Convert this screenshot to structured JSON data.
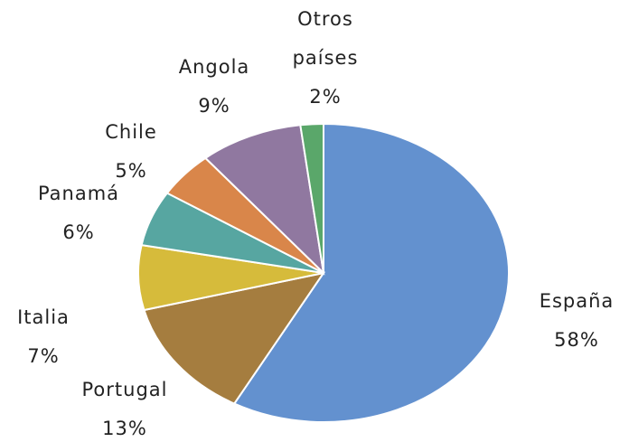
{
  "chart_data": {
    "type": "pie",
    "categories": [
      "España",
      "Portugal",
      "Italia",
      "Panamá",
      "Chile",
      "Angola",
      "Otros países"
    ],
    "values": [
      58,
      13,
      7,
      6,
      5,
      9,
      2
    ],
    "value_labels": [
      "58%",
      "13%",
      "7%",
      "6%",
      "5%",
      "9%",
      "2%"
    ],
    "colors": [
      "#6391cf",
      "#a57d3f",
      "#d6bb3b",
      "#57a6a1",
      "#d9864a",
      "#9078a0",
      "#5aa76a"
    ]
  }
}
